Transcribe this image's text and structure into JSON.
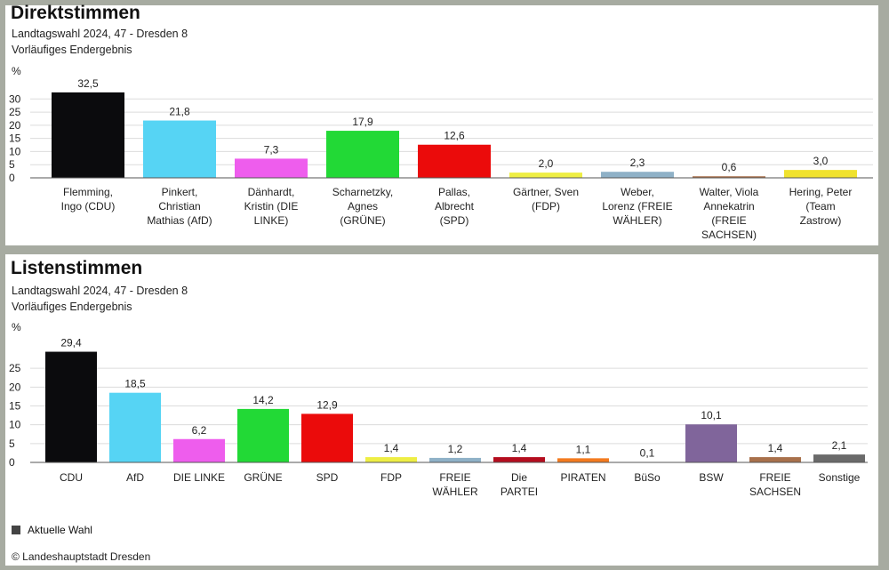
{
  "legend_label": "Aktuelle Wahl",
  "copyright": "© Landeshauptstadt Dresden",
  "chart_data": [
    {
      "type": "bar",
      "title": "Direktstimmen",
      "subtitle1": "Landtagswahl 2024, 47 - Dresden 8",
      "subtitle2": "Vorläufiges Endergebnis",
      "ylabel": "%",
      "ylim": [
        0,
        35
      ],
      "yticks": [
        0,
        5,
        10,
        15,
        20,
        25,
        30
      ],
      "categories": [
        [
          "Flemming,",
          "Ingo (CDU)"
        ],
        [
          "Pinkert,",
          "Christian",
          "Mathias (AfD)"
        ],
        [
          "Dänhardt,",
          "Kristin (DIE",
          "LINKE)"
        ],
        [
          "Scharnetzky,",
          "Agnes",
          "(GRÜNE)"
        ],
        [
          "Pallas,",
          "Albrecht",
          "(SPD)"
        ],
        [
          "Gärtner, Sven",
          "(FDP)"
        ],
        [
          "Weber,",
          "Lorenz (FREIE",
          "WÄHLER)"
        ],
        [
          "Walter, Viola",
          "Annekatrin",
          "(FREIE",
          "SACHSEN)"
        ],
        [
          "Hering, Peter",
          "(Team",
          "Zastrow)"
        ]
      ],
      "values": [
        32.5,
        21.8,
        7.3,
        17.9,
        12.6,
        2.0,
        2.3,
        0.6,
        3.0
      ],
      "value_labels": [
        "32,5",
        "21,8",
        "7,3",
        "17,9",
        "12,6",
        "2,0",
        "2,3",
        "0,6",
        "3,0"
      ],
      "colors": [
        "#0b0b0d",
        "#56d4f4",
        "#ee5ded",
        "#22d936",
        "#eb0b0b",
        "#eeee44",
        "#8fb1c7",
        "#a8704b",
        "#f0e22e"
      ],
      "grid": true
    },
    {
      "type": "bar",
      "title": "Listenstimmen",
      "subtitle1": "Landtagswahl 2024, 47 - Dresden 8",
      "subtitle2": "Vorläufiges Endergebnis",
      "ylabel": "%",
      "ylim": [
        0,
        30
      ],
      "yticks": [
        0,
        5,
        10,
        15,
        20,
        25
      ],
      "categories": [
        [
          "CDU"
        ],
        [
          "AfD"
        ],
        [
          "DIE LINKE"
        ],
        [
          "GRÜNE"
        ],
        [
          "SPD"
        ],
        [
          "FDP"
        ],
        [
          "FREIE",
          "WÄHLER"
        ],
        [
          "Die",
          "PARTEI"
        ],
        [
          "PIRATEN"
        ],
        [
          "BüSo"
        ],
        [
          "BSW"
        ],
        [
          "FREIE",
          "SACHSEN"
        ],
        [
          "Sonstige"
        ]
      ],
      "values": [
        29.4,
        18.5,
        6.2,
        14.2,
        12.9,
        1.4,
        1.2,
        1.4,
        1.1,
        0.1,
        10.1,
        1.4,
        2.1
      ],
      "value_labels": [
        "29,4",
        "18,5",
        "6,2",
        "14,2",
        "12,9",
        "1,4",
        "1,2",
        "1,4",
        "1,1",
        "0,1",
        "10,1",
        "1,4",
        "2,1"
      ],
      "colors": [
        "#0b0b0d",
        "#56d4f4",
        "#ee5ded",
        "#22d936",
        "#eb0b0b",
        "#eeee44",
        "#8fb1c7",
        "#b40d1e",
        "#f37a1f",
        "#ffffff",
        "#80659b",
        "#a8704b",
        "#6a6a6a"
      ],
      "grid": true
    }
  ]
}
